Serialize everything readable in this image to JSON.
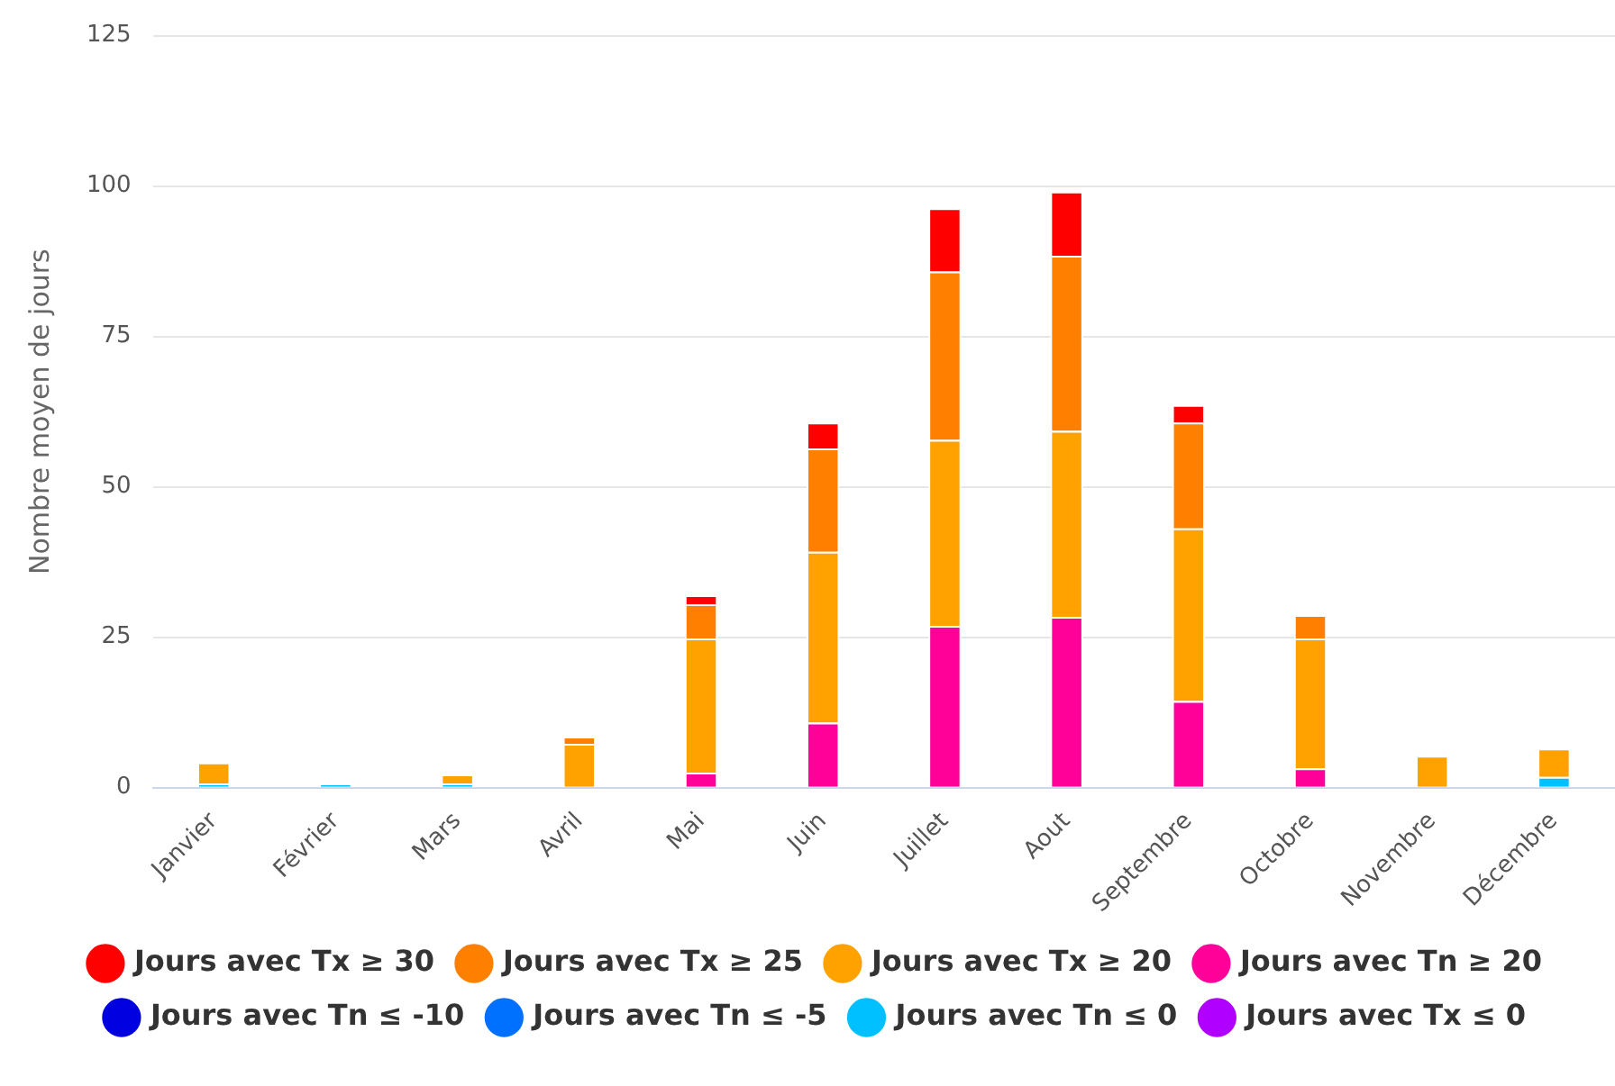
{
  "chart_data": {
    "type": "bar",
    "stacked": true,
    "ylabel": "Nombre moyen de jours",
    "categories": [
      "Janvier",
      "Février",
      "Mars",
      "Avril",
      "Mai",
      "Juin",
      "Juillet",
      "Aout",
      "Septembre",
      "Octobre",
      "Novembre",
      "Décembre"
    ],
    "ylim": [
      0,
      125
    ],
    "yticks": [
      0,
      25,
      50,
      75,
      100,
      125
    ],
    "grid": "y",
    "legend": "bottom",
    "series": [
      {
        "name": "Jours avec Tx ≤ 0",
        "color": "#b000ff",
        "values": [
          0,
          0,
          0,
          0,
          0,
          0,
          0,
          0,
          0,
          0,
          0,
          0
        ]
      },
      {
        "name": "Jours avec Tn ≤ 0",
        "color": "#00c0ff",
        "values": [
          0.7,
          0.7,
          0.7,
          0,
          0,
          0,
          0,
          0,
          0,
          0,
          0,
          1.8
        ]
      },
      {
        "name": "Jours avec Tn ≤ -5",
        "color": "#0070ff",
        "values": [
          0,
          0,
          0,
          0,
          0,
          0,
          0,
          0,
          0,
          0,
          0,
          0
        ]
      },
      {
        "name": "Jours avec Tn ≤ -10",
        "color": "#0000e0",
        "values": [
          0,
          0,
          0,
          0,
          0,
          0,
          0,
          0,
          0,
          0,
          0,
          0
        ]
      },
      {
        "name": "Jours avec Tn ≥ 20",
        "color": "#ff0099",
        "values": [
          0,
          0,
          0,
          0,
          2.5,
          10.8,
          26.9,
          28.4,
          14.4,
          3.2,
          0,
          0
        ]
      },
      {
        "name": "Jours avec Tx ≥ 20",
        "color": "#ffa200",
        "values": [
          3.5,
          0,
          1.5,
          7.3,
          22.3,
          28.4,
          30.9,
          30.9,
          28.7,
          21.6,
          5.3,
          4.7
        ]
      },
      {
        "name": "Jours avec Tx ≥ 25",
        "color": "#ff8000",
        "values": [
          0,
          0,
          0,
          1.2,
          5.7,
          17.2,
          28,
          29.1,
          17.6,
          3.9,
          0,
          0
        ]
      },
      {
        "name": "Jours avec Tx ≥ 30",
        "color": "#ff0000",
        "values": [
          0,
          0,
          0,
          0,
          1.5,
          4.3,
          10.5,
          10.7,
          2.9,
          0,
          0,
          0
        ]
      }
    ]
  }
}
